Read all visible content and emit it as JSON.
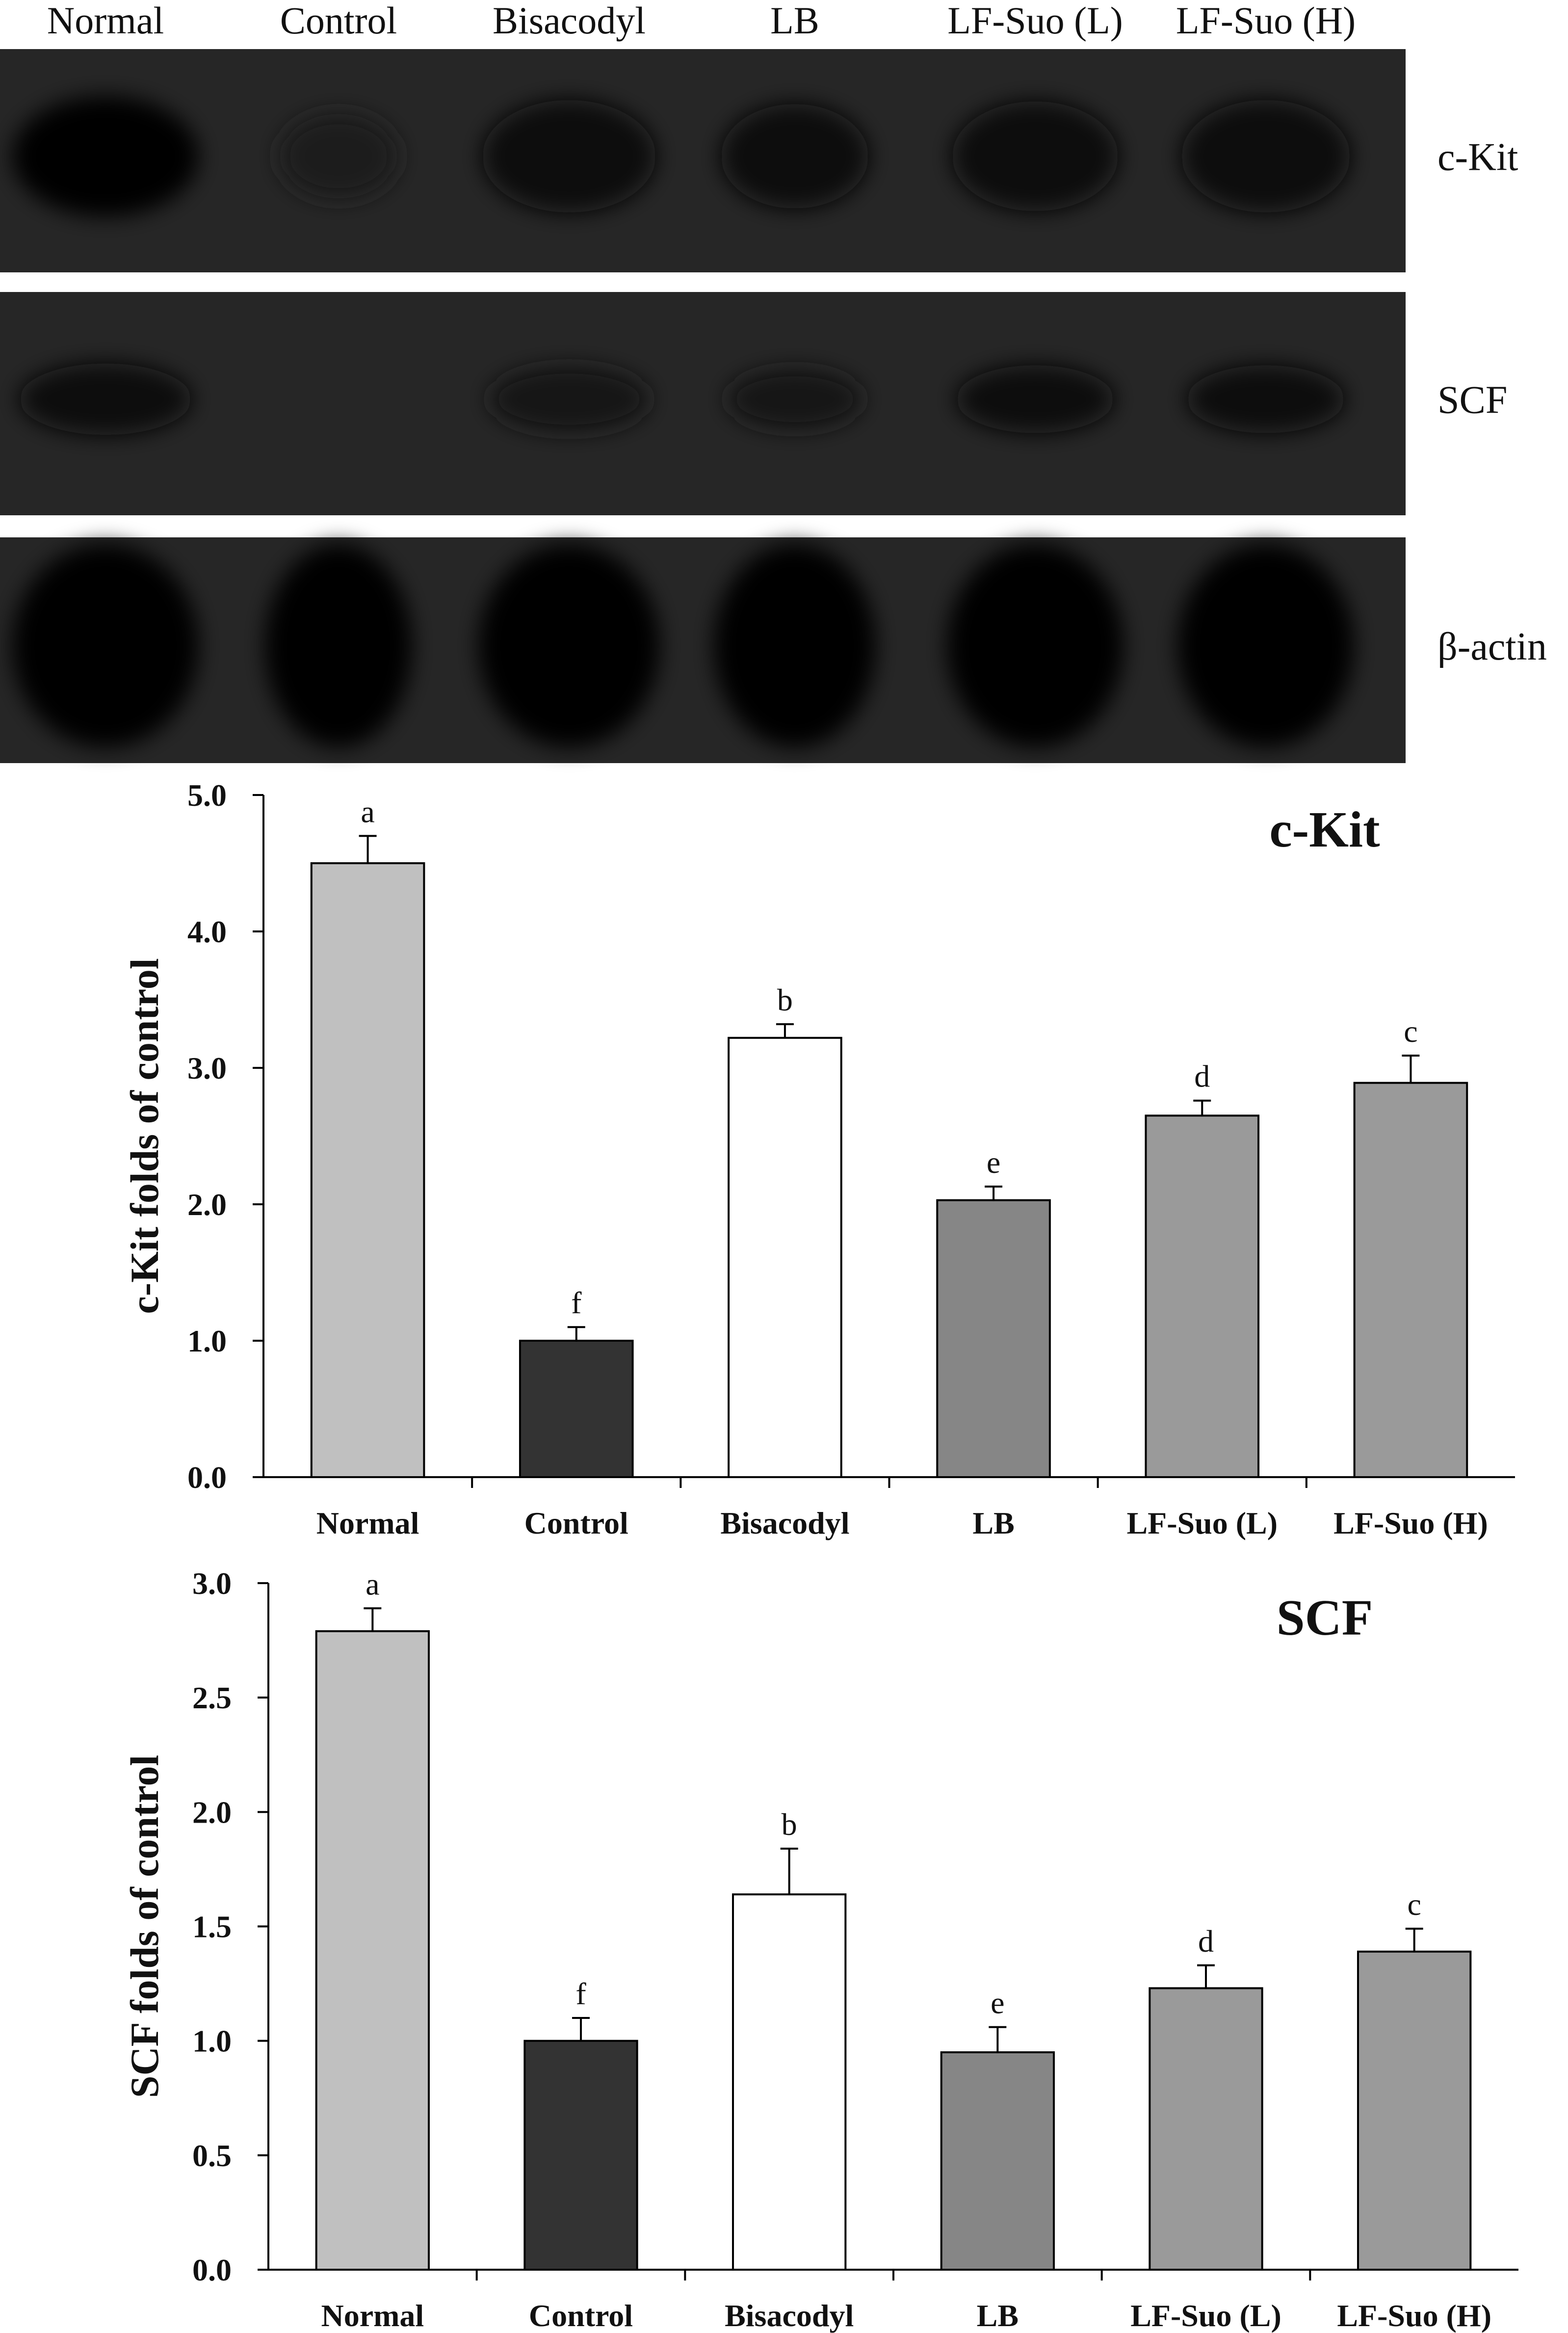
{
  "blot": {
    "lanes": [
      "Normal",
      "Control",
      "Bisacodyl",
      "LB",
      "LF-Suo (L)",
      "LF-Suo (H)"
    ],
    "panels": [
      {
        "protein": "c-Kit",
        "band_intensity": [
          1.0,
          0.35,
          0.85,
          0.7,
          0.8,
          0.85
        ]
      },
      {
        "protein": "SCF",
        "band_intensity": [
          0.75,
          0.0,
          0.6,
          0.45,
          0.65,
          0.65
        ]
      },
      {
        "protein": "β-actin",
        "band_intensity": [
          1.0,
          1.0,
          1.0,
          1.0,
          1.0,
          1.0
        ]
      }
    ]
  },
  "chart_data": [
    {
      "type": "bar",
      "title": "c-Kit",
      "ylabel": "c-Kit folds of control",
      "xlabel": "",
      "categories": [
        "Normal",
        "Control",
        "Bisacodyl",
        "LB",
        "LF-Suo (L)",
        "LF-Suo (H)"
      ],
      "values": [
        4.5,
        1.0,
        3.22,
        2.03,
        2.65,
        2.89
      ],
      "errors": [
        0.2,
        0.1,
        0.1,
        0.1,
        0.11,
        0.2
      ],
      "letters": [
        "a",
        "f",
        "b",
        "e",
        "d",
        "c"
      ],
      "bar_colors": [
        "#c0c0c0",
        "#333333",
        "#ffffff",
        "#868686",
        "#9a9a9a",
        "#9a9a9a"
      ],
      "ylim": [
        0,
        5
      ],
      "yticks": [
        "0.0",
        "1.0",
        "2.0",
        "3.0",
        "4.0",
        "5.0"
      ],
      "grid": false,
      "legend": "none"
    },
    {
      "type": "bar",
      "title": "SCF",
      "ylabel": "SCF folds of control",
      "xlabel": "",
      "categories": [
        "Normal",
        "Control",
        "Bisacodyl",
        "LB",
        "LF-Suo (L)",
        "LF-Suo (H)"
      ],
      "values": [
        2.79,
        1.0,
        1.64,
        0.95,
        1.23,
        1.39
      ],
      "errors": [
        0.1,
        0.1,
        0.2,
        0.11,
        0.1,
        0.1
      ],
      "letters": [
        "a",
        "f",
        "b",
        "e",
        "d",
        "c"
      ],
      "bar_colors": [
        "#c0c0c0",
        "#333333",
        "#ffffff",
        "#868686",
        "#9a9a9a",
        "#9a9a9a"
      ],
      "ylim": [
        0,
        3
      ],
      "yticks": [
        "0.0",
        "0.5",
        "1.0",
        "1.5",
        "2.0",
        "2.5",
        "3.0"
      ],
      "grid": false,
      "legend": "none"
    }
  ]
}
